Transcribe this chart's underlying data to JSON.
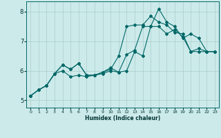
{
  "xlabel": "Humidex (Indice chaleur)",
  "background_color": "#cceaea",
  "grid_color": "#aacccc",
  "line_color": "#006666",
  "xlim": [
    -0.5,
    23.5
  ],
  "ylim": [
    4.75,
    8.35
  ],
  "yticks": [
    5,
    6,
    7,
    8
  ],
  "xticks": [
    0,
    1,
    2,
    3,
    4,
    5,
    6,
    7,
    8,
    9,
    10,
    11,
    12,
    13,
    14,
    15,
    16,
    17,
    18,
    19,
    20,
    21,
    22,
    23
  ],
  "series": [
    {
      "x": [
        0,
        1,
        2,
        3,
        4,
        5,
        6,
        7,
        8,
        9,
        10,
        11,
        12,
        13,
        14,
        15,
        16,
        17,
        18,
        19,
        20,
        21,
        22,
        23
      ],
      "y": [
        5.15,
        5.35,
        5.5,
        5.9,
        6.2,
        6.05,
        6.25,
        5.85,
        5.85,
        5.95,
        6.05,
        6.5,
        7.5,
        7.55,
        7.55,
        7.85,
        7.65,
        7.55,
        7.3,
        7.25,
        6.65,
        6.75,
        6.65,
        6.65
      ]
    },
    {
      "x": [
        0,
        1,
        2,
        3,
        4,
        5,
        6,
        7,
        8,
        9,
        10,
        11,
        12,
        13,
        14,
        15,
        16,
        17,
        18,
        19,
        20,
        21,
        22,
        23
      ],
      "y": [
        5.15,
        5.35,
        5.5,
        5.9,
        6.2,
        6.05,
        6.25,
        5.85,
        5.85,
        5.95,
        6.1,
        5.95,
        6.55,
        6.7,
        7.5,
        7.5,
        8.1,
        7.65,
        7.5,
        7.1,
        7.25,
        7.1,
        6.65,
        6.65
      ]
    },
    {
      "x": [
        0,
        1,
        2,
        3,
        4,
        5,
        6,
        7,
        8,
        9,
        10,
        11,
        12,
        13,
        14,
        15,
        16,
        17,
        18,
        19,
        20,
        21,
        22,
        23
      ],
      "y": [
        5.15,
        5.35,
        5.5,
        5.9,
        6.0,
        5.8,
        5.85,
        5.8,
        5.85,
        5.9,
        6.0,
        5.95,
        6.0,
        6.65,
        6.5,
        7.5,
        7.5,
        7.25,
        7.4,
        7.15,
        6.65,
        6.65,
        6.65,
        6.65
      ]
    }
  ]
}
